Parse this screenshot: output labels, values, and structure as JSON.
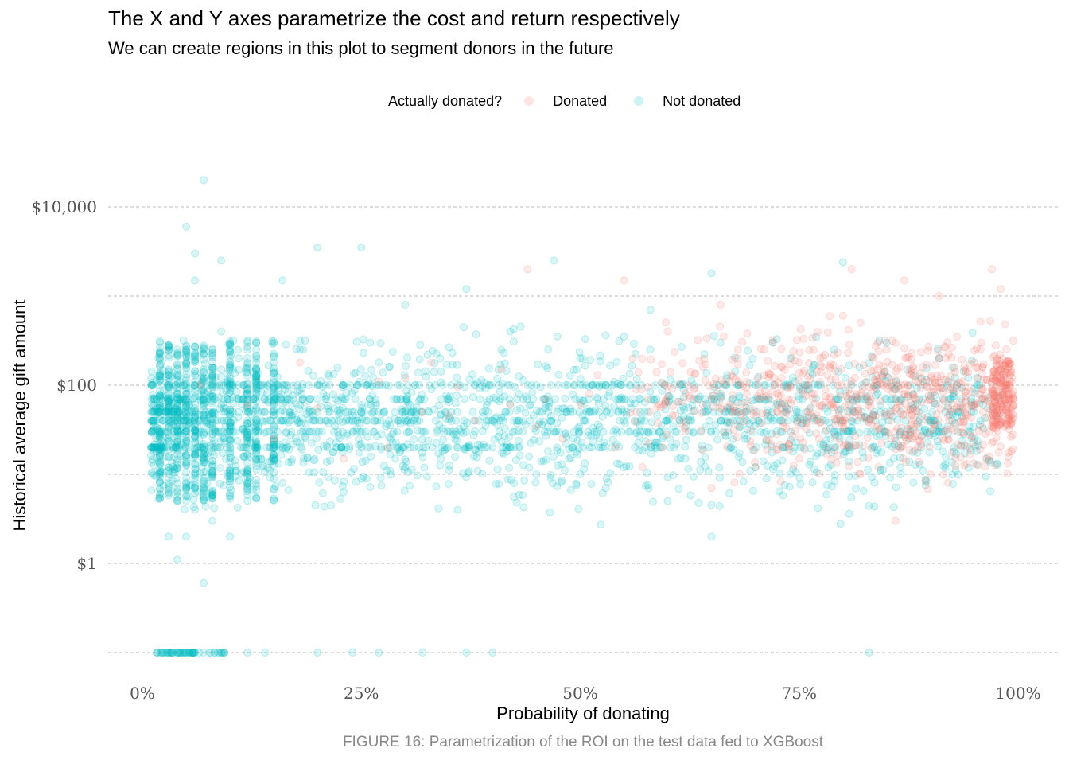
{
  "chart_data": {
    "type": "scatter",
    "title": "The X and Y axes parametrize the cost and return respectively",
    "subtitle": "We can create regions in this plot to segment donors in the future",
    "xlabel": "Probability of donating",
    "ylabel": "Historical average gift amount",
    "caption": "FIGURE 16: Parametrization of the ROI on the test data fed to XGBoost",
    "x_scale": "linear",
    "y_scale": "log10",
    "xlim": [
      0,
      1
    ],
    "ylim_log10": [
      -1,
      4
    ],
    "x_ticks": [
      {
        "value": 0,
        "label": "0%"
      },
      {
        "value": 0.25,
        "label": "25%"
      },
      {
        "value": 0.5,
        "label": "50%"
      },
      {
        "value": 0.75,
        "label": "75%"
      },
      {
        "value": 1,
        "label": "100%"
      }
    ],
    "y_ticks": [
      {
        "value": 10000,
        "label": "$10,000"
      },
      {
        "value": 100,
        "label": "$100"
      },
      {
        "value": 1,
        "label": "$1"
      }
    ],
    "y_minor_gridlines": [
      1000,
      10,
      0.1
    ],
    "grid": "horizontal dashed",
    "legend": {
      "title": "Actually donated?",
      "position": "top",
      "entries": [
        {
          "name": "Donated",
          "color": "#F8766D"
        },
        {
          "name": "Not donated",
          "color": "#00BFC4"
        }
      ]
    },
    "point_alpha": 0.15,
    "series": [
      {
        "name": "Donated",
        "color": "#F8766D",
        "points": [
          [
            0.065,
            100
          ],
          [
            0.12,
            60
          ],
          [
            0.2,
            55
          ],
          [
            0.27,
            110
          ],
          [
            0.3,
            120
          ],
          [
            0.33,
            180
          ],
          [
            0.35,
            45
          ],
          [
            0.38,
            40
          ],
          [
            0.41,
            150
          ],
          [
            0.45,
            35
          ],
          [
            0.48,
            25
          ],
          [
            0.5,
            60
          ],
          [
            0.52,
            130
          ],
          [
            0.54,
            20
          ],
          [
            0.56,
            200
          ],
          [
            0.58,
            50
          ],
          [
            0.6,
            400
          ],
          [
            0.62,
            30
          ],
          [
            0.63,
            90
          ],
          [
            0.64,
            160
          ],
          [
            0.65,
            70
          ],
          [
            0.66,
            55
          ],
          [
            0.67,
            110
          ],
          [
            0.68,
            250
          ],
          [
            0.69,
            80
          ],
          [
            0.7,
            45
          ],
          [
            0.71,
            130
          ],
          [
            0.72,
            320
          ],
          [
            0.73,
            60
          ],
          [
            0.74,
            95
          ],
          [
            0.75,
            180
          ],
          [
            0.76,
            50
          ],
          [
            0.77,
            140
          ],
          [
            0.78,
            75
          ],
          [
            0.79,
            220
          ],
          [
            0.8,
            40
          ],
          [
            0.81,
            110
          ],
          [
            0.82,
            500
          ],
          [
            0.83,
            65
          ],
          [
            0.84,
            150
          ],
          [
            0.85,
            30
          ],
          [
            0.86,
            90
          ],
          [
            0.87,
            260
          ],
          [
            0.88,
            55
          ],
          [
            0.89,
            120
          ],
          [
            0.9,
            70
          ],
          [
            0.91,
            200
          ],
          [
            0.92,
            45
          ],
          [
            0.93,
            100
          ],
          [
            0.94,
            140
          ],
          [
            0.95,
            60
          ],
          [
            0.96,
            90
          ],
          [
            0.97,
            35
          ],
          [
            0.98,
            150
          ],
          [
            0.99,
            80
          ],
          [
            0.99,
            40
          ],
          [
            0.98,
            60
          ],
          [
            0.97,
            110
          ],
          [
            0.96,
            50
          ],
          [
            0.95,
            180
          ],
          [
            0.78,
            20
          ],
          [
            0.82,
            10
          ],
          [
            0.84,
            300
          ],
          [
            0.86,
            3
          ],
          [
            0.88,
            25
          ],
          [
            0.9,
            10
          ],
          [
            0.92,
            8
          ],
          [
            0.75,
            15
          ],
          [
            0.7,
            12
          ],
          [
            0.65,
            7
          ],
          [
            0.85,
            250
          ],
          [
            0.8,
            600
          ],
          [
            0.93,
            350
          ],
          [
            0.97,
            2000
          ],
          [
            0.98,
            1200
          ],
          [
            0.91,
            1000
          ],
          [
            0.87,
            1500
          ],
          [
            0.81,
            2000
          ],
          [
            0.66,
            800
          ],
          [
            0.55,
            1500
          ],
          [
            0.44,
            2000
          ],
          [
            0.6,
            75
          ],
          [
            0.72,
            85
          ],
          [
            0.78,
            90
          ],
          [
            0.83,
            95
          ],
          [
            0.86,
            70
          ],
          [
            0.89,
            65
          ],
          [
            0.94,
            85
          ],
          [
            0.99,
            70
          ],
          [
            0.99,
            55
          ],
          [
            0.99,
            100
          ],
          [
            0.98,
            120
          ],
          [
            0.97,
            90
          ],
          [
            0.92,
            55
          ],
          [
            0.88,
            80
          ],
          [
            0.84,
            110
          ],
          [
            0.79,
            60
          ],
          [
            0.76,
            100
          ],
          [
            0.73,
            120
          ],
          [
            0.69,
            95
          ],
          [
            0.64,
            60
          ],
          [
            0.57,
            90
          ],
          [
            0.51,
            80
          ],
          [
            0.46,
            70
          ],
          [
            0.42,
            60
          ],
          [
            0.36,
            95
          ],
          [
            0.32,
            50
          ],
          [
            0.28,
            20
          ],
          [
            0.23,
            15
          ],
          [
            0.18,
            180
          ],
          [
            0.15,
            25
          ]
        ]
      },
      {
        "name": "Not donated",
        "color": "#00BFC4",
        "points": [
          [
            0.07,
            20000
          ],
          [
            0.05,
            6000
          ],
          [
            0.06,
            3000
          ],
          [
            0.2,
            3500
          ],
          [
            0.25,
            3500
          ],
          [
            0.47,
            2500
          ],
          [
            0.06,
            1500
          ],
          [
            0.09,
            2500
          ],
          [
            0.16,
            1500
          ],
          [
            0.37,
            1200
          ],
          [
            0.65,
            1800
          ],
          [
            0.8,
            2400
          ],
          [
            0.58,
            700
          ],
          [
            0.3,
            800
          ],
          [
            0.42,
            400
          ],
          [
            0.55,
            350
          ],
          [
            0.72,
            300
          ],
          [
            0.27,
            0.1
          ],
          [
            0.12,
            0.1
          ],
          [
            0.06,
            0.1
          ],
          [
            0.03,
            0.1
          ],
          [
            0.14,
            0.1
          ],
          [
            0.2,
            0.1
          ],
          [
            0.24,
            0.1
          ],
          [
            0.32,
            0.1
          ],
          [
            0.37,
            0.1
          ],
          [
            0.4,
            0.1
          ],
          [
            0.83,
            0.1
          ],
          [
            0.04,
            1.1
          ],
          [
            0.07,
            0.6
          ],
          [
            0.03,
            2
          ],
          [
            0.05,
            2
          ],
          [
            0.06,
            4
          ],
          [
            0.08,
            3
          ],
          [
            0.1,
            2
          ],
          [
            0.36,
            4
          ],
          [
            0.6,
            5
          ],
          [
            0.65,
            2
          ],
          [
            0.02,
            30
          ],
          [
            0.02,
            60
          ],
          [
            0.02,
            100
          ],
          [
            0.02,
            200
          ],
          [
            0.03,
            50
          ],
          [
            0.03,
            150
          ],
          [
            0.04,
            80
          ],
          [
            0.04,
            40
          ],
          [
            0.05,
            100
          ],
          [
            0.05,
            60
          ],
          [
            0.06,
            90
          ],
          [
            0.06,
            30
          ],
          [
            0.07,
            120
          ],
          [
            0.07,
            70
          ],
          [
            0.08,
            100
          ],
          [
            0.08,
            45
          ],
          [
            0.09,
            60
          ],
          [
            0.09,
            150
          ],
          [
            0.1,
            100
          ],
          [
            0.1,
            35
          ],
          [
            0.11,
            50
          ],
          [
            0.11,
            200
          ],
          [
            0.12,
            70
          ],
          [
            0.12,
            30
          ],
          [
            0.13,
            100
          ],
          [
            0.13,
            55
          ],
          [
            0.14,
            50
          ],
          [
            0.15,
            70
          ],
          [
            0.16,
            100
          ],
          [
            0.17,
            45
          ],
          [
            0.18,
            60
          ],
          [
            0.19,
            100
          ],
          [
            0.2,
            50
          ],
          [
            0.21,
            75
          ],
          [
            0.22,
            35
          ],
          [
            0.23,
            100
          ],
          [
            0.24,
            45
          ],
          [
            0.25,
            60
          ],
          [
            0.27,
            100
          ],
          [
            0.29,
            70
          ],
          [
            0.31,
            50
          ],
          [
            0.33,
            90
          ],
          [
            0.35,
            65
          ],
          [
            0.38,
            100
          ],
          [
            0.4,
            40
          ],
          [
            0.43,
            80
          ],
          [
            0.45,
            100
          ],
          [
            0.48,
            55
          ],
          [
            0.5,
            100
          ],
          [
            0.52,
            70
          ],
          [
            0.55,
            40
          ],
          [
            0.57,
            100
          ],
          [
            0.6,
            65
          ],
          [
            0.63,
            100
          ],
          [
            0.66,
            80
          ],
          [
            0.69,
            50
          ],
          [
            0.72,
            100
          ],
          [
            0.75,
            70
          ],
          [
            0.78,
            55
          ],
          [
            0.81,
            100
          ],
          [
            0.84,
            80
          ],
          [
            0.86,
            90
          ],
          [
            0.88,
            60
          ],
          [
            0.9,
            75
          ],
          [
            0.93,
            100
          ],
          [
            0.96,
            60
          ],
          [
            0.02,
            10
          ],
          [
            0.04,
            5
          ],
          [
            0.08,
            10
          ],
          [
            0.12,
            10
          ],
          [
            0.16,
            8
          ],
          [
            0.3,
            12
          ],
          [
            0.45,
            10
          ],
          [
            0.5,
            10
          ],
          [
            0.55,
            12
          ],
          [
            0.7,
            12
          ],
          [
            0.74,
            10
          ],
          [
            0.62,
            15
          ],
          [
            0.02,
            300
          ],
          [
            0.05,
            250
          ],
          [
            0.09,
            400
          ],
          [
            0.13,
            300
          ],
          [
            0.18,
            250
          ],
          [
            0.26,
            300
          ],
          [
            0.34,
            200
          ],
          [
            0.41,
            250
          ],
          [
            0.5,
            200
          ],
          [
            0.58,
            250
          ],
          [
            0.66,
            300
          ],
          [
            0.74,
            200
          ],
          [
            0.79,
            250
          ],
          [
            0.85,
            300
          ],
          [
            0.91,
            200
          ]
        ]
      }
    ]
  },
  "density_bands": {
    "Not donated_rows": [
      100,
      70,
      50,
      40,
      30,
      20
    ],
    "Not donated_verticals": [
      0.02,
      0.03,
      0.04,
      0.05,
      0.06,
      0.07,
      0.08,
      0.1,
      0.12,
      0.13,
      0.15
    ]
  }
}
